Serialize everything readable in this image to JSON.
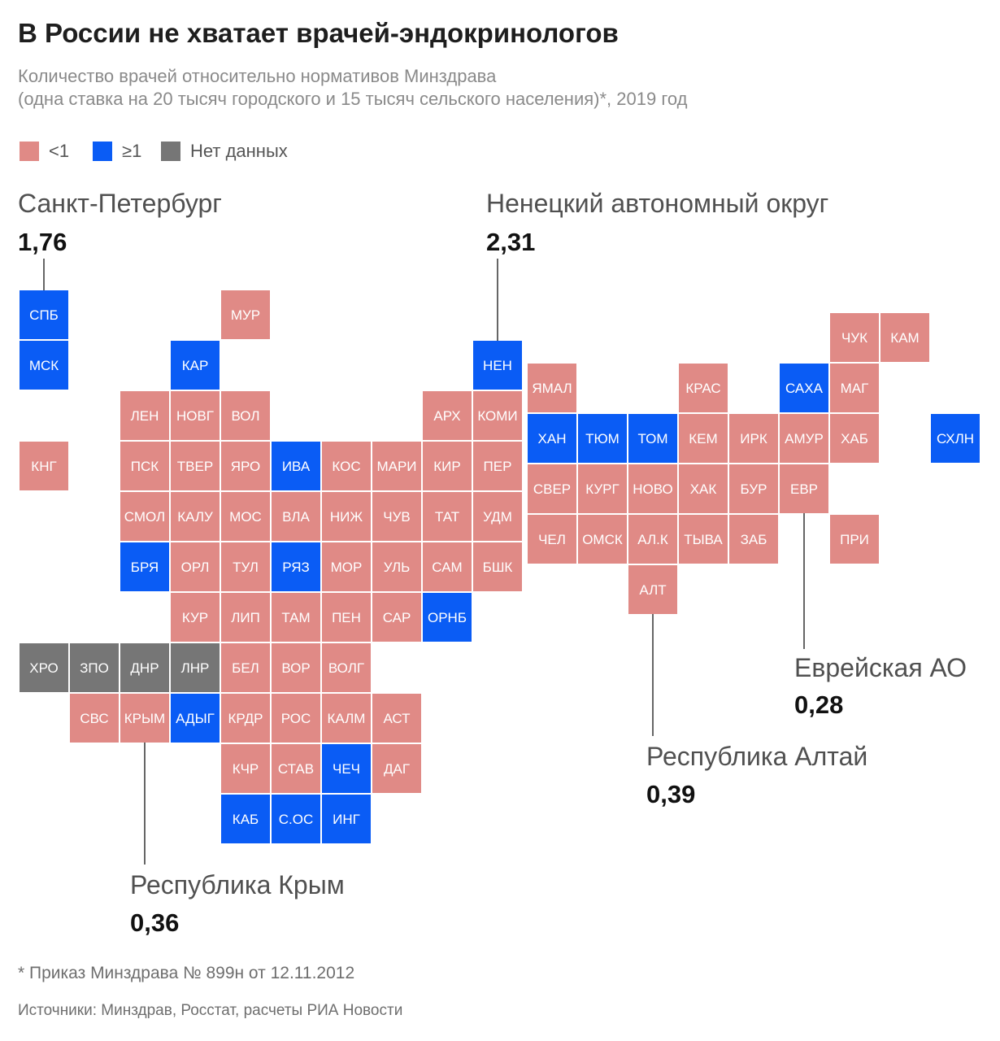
{
  "title": "В России не хватает врачей-эндокринологов",
  "subtitle": {
    "line1": "Количество врачей относительно нормативов Минздрава",
    "line2": "(одна ставка на 20 тысяч городского и 15 тысяч сельского населения)*, 2019 год"
  },
  "legend": [
    {
      "label": "<1",
      "color": "#e08a86"
    },
    {
      "label": "≥1",
      "color": "#0a5cf5"
    },
    {
      "label": "Нет данных",
      "color": "#767676"
    }
  ],
  "colors": {
    "low": "#e08a86",
    "high": "#0a5cf5",
    "nodata": "#767676"
  },
  "callouts": {
    "spb": {
      "name": "Санкт-Петербург",
      "value": "1,76"
    },
    "nen": {
      "name": "Ненецкий автономный округ",
      "value": "2,31"
    },
    "evr": {
      "name": "Еврейская АО",
      "value": "0,28"
    },
    "alt": {
      "name": "Республика Алтай",
      "value": "0,39"
    },
    "krym": {
      "name": "Республика Крым",
      "value": "0,36"
    }
  },
  "regions": [
    {
      "code": "СПБ",
      "status": "high",
      "col": 0,
      "row": 0
    },
    {
      "code": "МСК",
      "status": "high",
      "col": 0,
      "row": 1
    },
    {
      "code": "КНГ",
      "status": "low",
      "col": 0,
      "row": 3
    },
    {
      "code": "МУР",
      "status": "low",
      "col": 4,
      "row": 0
    },
    {
      "code": "КАР",
      "status": "high",
      "col": 3,
      "row": 1
    },
    {
      "code": "НЕН",
      "status": "high",
      "col": 9,
      "row": 1
    },
    {
      "code": "ЛЕН",
      "status": "low",
      "col": 2,
      "row": 2
    },
    {
      "code": "НОВГ",
      "status": "low",
      "col": 3,
      "row": 2
    },
    {
      "code": "ВОЛ",
      "status": "low",
      "col": 4,
      "row": 2
    },
    {
      "code": "АРХ",
      "status": "low",
      "col": 8,
      "row": 2
    },
    {
      "code": "КОМИ",
      "status": "low",
      "col": 9,
      "row": 2
    },
    {
      "code": "ПСК",
      "status": "low",
      "col": 2,
      "row": 3
    },
    {
      "code": "ТВЕР",
      "status": "low",
      "col": 3,
      "row": 3
    },
    {
      "code": "ЯРО",
      "status": "low",
      "col": 4,
      "row": 3
    },
    {
      "code": "ИВА",
      "status": "high",
      "col": 5,
      "row": 3
    },
    {
      "code": "КОС",
      "status": "low",
      "col": 6,
      "row": 3
    },
    {
      "code": "МАРИ",
      "status": "low",
      "col": 7,
      "row": 3
    },
    {
      "code": "КИР",
      "status": "low",
      "col": 8,
      "row": 3
    },
    {
      "code": "ПЕР",
      "status": "low",
      "col": 9,
      "row": 3
    },
    {
      "code": "СМОЛ",
      "status": "low",
      "col": 2,
      "row": 4
    },
    {
      "code": "КАЛУ",
      "status": "low",
      "col": 3,
      "row": 4
    },
    {
      "code": "МОС",
      "status": "low",
      "col": 4,
      "row": 4
    },
    {
      "code": "ВЛА",
      "status": "low",
      "col": 5,
      "row": 4
    },
    {
      "code": "НИЖ",
      "status": "low",
      "col": 6,
      "row": 4
    },
    {
      "code": "ЧУВ",
      "status": "low",
      "col": 7,
      "row": 4
    },
    {
      "code": "ТАТ",
      "status": "low",
      "col": 8,
      "row": 4
    },
    {
      "code": "УДМ",
      "status": "low",
      "col": 9,
      "row": 4
    },
    {
      "code": "БРЯ",
      "status": "high",
      "col": 2,
      "row": 5
    },
    {
      "code": "ОРЛ",
      "status": "low",
      "col": 3,
      "row": 5
    },
    {
      "code": "ТУЛ",
      "status": "low",
      "col": 4,
      "row": 5
    },
    {
      "code": "РЯЗ",
      "status": "high",
      "col": 5,
      "row": 5
    },
    {
      "code": "МОР",
      "status": "low",
      "col": 6,
      "row": 5
    },
    {
      "code": "УЛЬ",
      "status": "low",
      "col": 7,
      "row": 5
    },
    {
      "code": "САМ",
      "status": "low",
      "col": 8,
      "row": 5
    },
    {
      "code": "БШК",
      "status": "low",
      "col": 9,
      "row": 5
    },
    {
      "code": "КУР",
      "status": "low",
      "col": 3,
      "row": 6
    },
    {
      "code": "ЛИП",
      "status": "low",
      "col": 4,
      "row": 6
    },
    {
      "code": "ТАМ",
      "status": "low",
      "col": 5,
      "row": 6
    },
    {
      "code": "ПЕН",
      "status": "low",
      "col": 6,
      "row": 6
    },
    {
      "code": "САР",
      "status": "low",
      "col": 7,
      "row": 6
    },
    {
      "code": "ОРНБ",
      "status": "high",
      "col": 8,
      "row": 6
    },
    {
      "code": "ХРО",
      "status": "nodata",
      "col": 0,
      "row": 7
    },
    {
      "code": "ЗПО",
      "status": "nodata",
      "col": 1,
      "row": 7
    },
    {
      "code": "ДНР",
      "status": "nodata",
      "col": 2,
      "row": 7
    },
    {
      "code": "ЛНР",
      "status": "nodata",
      "col": 3,
      "row": 7
    },
    {
      "code": "БЕЛ",
      "status": "low",
      "col": 4,
      "row": 7
    },
    {
      "code": "ВОР",
      "status": "low",
      "col": 5,
      "row": 7
    },
    {
      "code": "ВОЛГ",
      "status": "low",
      "col": 6,
      "row": 7
    },
    {
      "code": "СВС",
      "status": "low",
      "col": 1,
      "row": 8
    },
    {
      "code": "КРЫМ",
      "status": "low",
      "col": 2,
      "row": 8
    },
    {
      "code": "АДЫГ",
      "status": "high",
      "col": 3,
      "row": 8
    },
    {
      "code": "КРДР",
      "status": "low",
      "col": 4,
      "row": 8
    },
    {
      "code": "РОС",
      "status": "low",
      "col": 5,
      "row": 8
    },
    {
      "code": "КАЛМ",
      "status": "low",
      "col": 6,
      "row": 8
    },
    {
      "code": "АСТ",
      "status": "low",
      "col": 7,
      "row": 8
    },
    {
      "code": "КЧР",
      "status": "low",
      "col": 4,
      "row": 9
    },
    {
      "code": "СТАВ",
      "status": "low",
      "col": 5,
      "row": 9
    },
    {
      "code": "ЧЕЧ",
      "status": "high",
      "col": 6,
      "row": 9
    },
    {
      "code": "ДАГ",
      "status": "low",
      "col": 7,
      "row": 9
    },
    {
      "code": "КАБ",
      "status": "high",
      "col": 4,
      "row": 10
    },
    {
      "code": "С.ОС",
      "status": "high",
      "col": 5,
      "row": 10
    },
    {
      "code": "ИНГ",
      "status": "high",
      "col": 6,
      "row": 10
    },
    {
      "code": "ЧУК",
      "status": "low",
      "col": 6,
      "row": 0
    },
    {
      "code": "КАМ",
      "status": "low",
      "col": 7,
      "row": 0
    },
    {
      "code": "ЯМАЛ",
      "status": "low",
      "col": 0,
      "row": 1
    },
    {
      "code": "КРАС",
      "status": "low",
      "col": 3,
      "row": 1
    },
    {
      "code": "САХА",
      "status": "high",
      "col": 5,
      "row": 1
    },
    {
      "code": "МАГ",
      "status": "low",
      "col": 6,
      "row": 1
    },
    {
      "code": "ХАН",
      "status": "high",
      "col": 0,
      "row": 2
    },
    {
      "code": "ТЮМ",
      "status": "high",
      "col": 1,
      "row": 2
    },
    {
      "code": "ТОМ",
      "status": "high",
      "col": 2,
      "row": 2
    },
    {
      "code": "КЕМ",
      "status": "low",
      "col": 3,
      "row": 2
    },
    {
      "code": "ИРК",
      "status": "low",
      "col": 4,
      "row": 2
    },
    {
      "code": "АМУР",
      "status": "low",
      "col": 5,
      "row": 2
    },
    {
      "code": "ХАБ",
      "status": "low",
      "col": 6,
      "row": 2
    },
    {
      "code": "СХЛН",
      "status": "high",
      "col": 8,
      "row": 2
    },
    {
      "code": "СВЕР",
      "status": "low",
      "col": 0,
      "row": 3
    },
    {
      "code": "КУРГ",
      "status": "low",
      "col": 1,
      "row": 3
    },
    {
      "code": "НОВО",
      "status": "low",
      "col": 2,
      "row": 3
    },
    {
      "code": "ХАК",
      "status": "low",
      "col": 3,
      "row": 3
    },
    {
      "code": "БУР",
      "status": "low",
      "col": 4,
      "row": 3
    },
    {
      "code": "ЕВР",
      "status": "low",
      "col": 5,
      "row": 3
    },
    {
      "code": "ЧЕЛ",
      "status": "low",
      "col": 0,
      "row": 4
    },
    {
      "code": "ОМСК",
      "status": "low",
      "col": 1,
      "row": 4
    },
    {
      "code": "АЛ.К",
      "status": "low",
      "col": 2,
      "row": 4
    },
    {
      "code": "ТЫВА",
      "status": "low",
      "col": 3,
      "row": 4
    },
    {
      "code": "ЗАБ",
      "status": "low",
      "col": 4,
      "row": 4
    },
    {
      "code": "ПРИ",
      "status": "low",
      "col": 6,
      "row": 4
    },
    {
      "code": "АЛТ",
      "status": "low",
      "col": 2,
      "row": 5
    }
  ],
  "footnote": "* Приказ Минздрава № 899н от 12.11.2012",
  "sources": "Источники: Минздрав, Росстат, расчеты РИА Новости"
}
